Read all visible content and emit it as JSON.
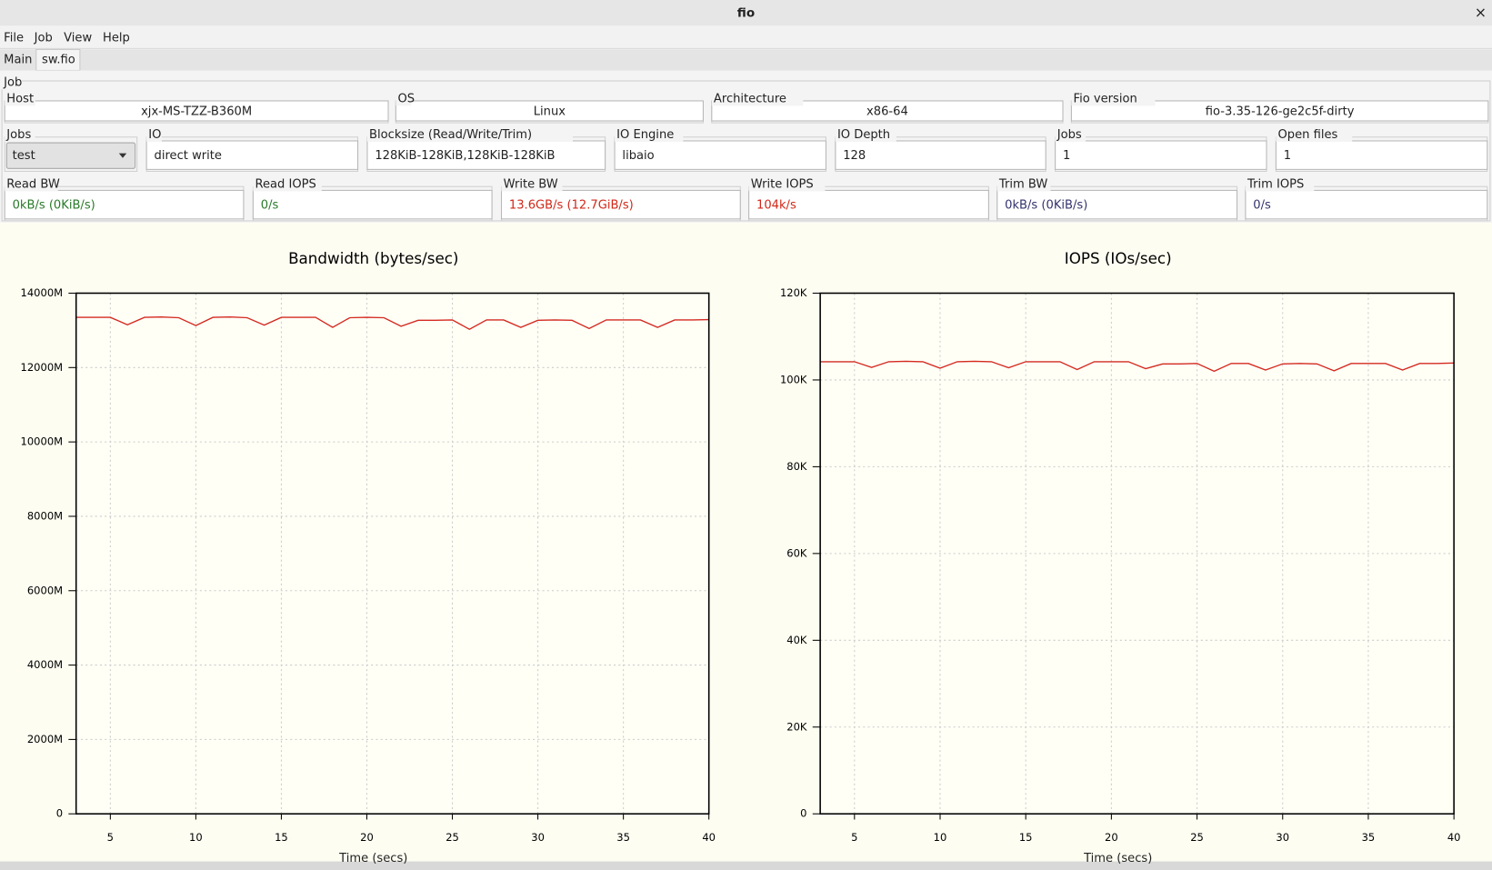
{
  "window": {
    "title": "fio"
  },
  "menu": [
    "File",
    "Job",
    "View",
    "Help"
  ],
  "tabs": [
    "Main",
    "sw.fio"
  ],
  "job": {
    "label": "Job",
    "rows": [
      [
        {
          "label": "Host",
          "value": "xjx-MS-TZZ-B360M"
        },
        {
          "label": "OS",
          "value": "Linux"
        },
        {
          "label": "Architecture",
          "value": "x86-64"
        },
        {
          "label": "Fio version",
          "value": "fio-3.35-126-ge2c5f-dirty"
        }
      ],
      [
        {
          "label": "Jobs",
          "value": "test"
        },
        {
          "label": "IO",
          "value": "direct write"
        },
        {
          "label": "Blocksize (Read/Write/Trim)",
          "value": "128KiB-128KiB,128KiB-128KiB"
        },
        {
          "label": "IO Engine",
          "value": "libaio"
        },
        {
          "label": "IO Depth",
          "value": "128"
        },
        {
          "label": "Jobs",
          "value": "1"
        },
        {
          "label": "Open files",
          "value": "1"
        }
      ],
      [
        {
          "label": "Read BW",
          "value": "0kB/s (0KiB/s)"
        },
        {
          "label": "Read IOPS",
          "value": "0/s"
        },
        {
          "label": "Write BW",
          "value": "13.6GB/s (12.7GiB/s)"
        },
        {
          "label": "Write IOPS",
          "value": "104k/s"
        },
        {
          "label": "Trim BW",
          "value": "0kB/s (0KiB/s)"
        },
        {
          "label": "Trim IOPS",
          "value": "0/s"
        }
      ]
    ]
  },
  "chart_data": [
    {
      "type": "line",
      "title": "Bandwidth (bytes/sec)",
      "x_label": "Time (secs)",
      "x": [
        3,
        4,
        5,
        6,
        7,
        8,
        9,
        10,
        11,
        12,
        13,
        14,
        15,
        16,
        17,
        18,
        19,
        20,
        21,
        22,
        23,
        24,
        25,
        26,
        27,
        28,
        29,
        30,
        31,
        32,
        33,
        34,
        35,
        36,
        37,
        38,
        39,
        40
      ],
      "values": [
        13350,
        13350,
        13350,
        13150,
        13350,
        13360,
        13340,
        13130,
        13350,
        13360,
        13340,
        13140,
        13350,
        13350,
        13350,
        13080,
        13340,
        13350,
        13340,
        13110,
        13270,
        13270,
        13280,
        13030,
        13280,
        13280,
        13080,
        13270,
        13280,
        13270,
        13050,
        13280,
        13280,
        13280,
        13080,
        13280,
        13280,
        13290
      ],
      "color": "#d42a20",
      "grid": true,
      "xlim": [
        3,
        40
      ],
      "xticks": [
        5,
        10,
        15,
        20,
        25,
        30,
        35,
        40
      ],
      "ylim": [
        0,
        14000
      ],
      "yticks": [
        0,
        {
          "value": 2000,
          "label": "2000M"
        },
        {
          "value": 4000,
          "label": "4000M"
        },
        {
          "value": 6000,
          "label": "6000M"
        },
        {
          "value": 8000,
          "label": "8000M"
        },
        {
          "value": 10000,
          "label": "10000M"
        },
        {
          "value": 12000,
          "label": "12000M"
        },
        {
          "value": 14000,
          "label": "14000M"
        }
      ]
    },
    {
      "type": "line",
      "title": "IOPS (IOs/sec)",
      "x_label": "Time (secs)",
      "x": [
        3,
        4,
        5,
        6,
        7,
        8,
        9,
        10,
        11,
        12,
        13,
        14,
        15,
        16,
        17,
        18,
        19,
        20,
        21,
        22,
        23,
        24,
        25,
        26,
        27,
        28,
        29,
        30,
        31,
        32,
        33,
        34,
        35,
        36,
        37,
        38,
        39,
        40
      ],
      "values": [
        104.2,
        104.2,
        104.2,
        102.9,
        104.2,
        104.3,
        104.2,
        102.7,
        104.2,
        104.3,
        104.2,
        102.8,
        104.2,
        104.2,
        104.2,
        102.4,
        104.2,
        104.2,
        104.2,
        102.6,
        103.7,
        103.7,
        103.8,
        102.0,
        103.8,
        103.8,
        102.3,
        103.7,
        103.8,
        103.7,
        102.1,
        103.8,
        103.8,
        103.8,
        102.3,
        103.8,
        103.8,
        103.9
      ],
      "color": "#d42a20",
      "grid": true,
      "xlim": [
        3,
        40
      ],
      "xticks": [
        5,
        10,
        15,
        20,
        25,
        30,
        35,
        40
      ],
      "ylim": [
        0,
        120
      ],
      "yticks": [
        0,
        {
          "value": 20,
          "label": "20K"
        },
        {
          "value": 40,
          "label": "40K"
        },
        {
          "value": 60,
          "label": "60K"
        },
        {
          "value": 80,
          "label": "80K"
        },
        {
          "value": 100,
          "label": "100K"
        },
        {
          "value": 120,
          "label": "120K"
        }
      ]
    }
  ]
}
